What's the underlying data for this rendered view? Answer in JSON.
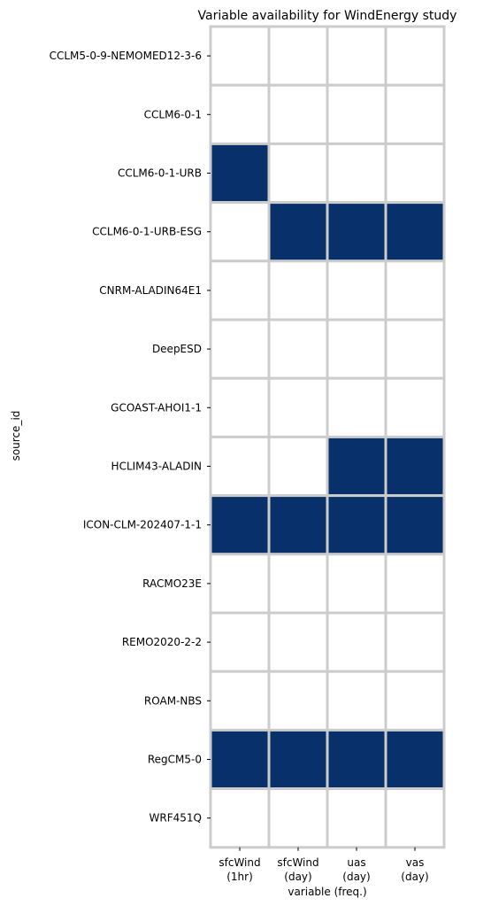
{
  "chart_data": {
    "type": "heatmap",
    "title": "Variable availability for WindEnergy study",
    "xlabel": "variable (freq.)",
    "ylabel": "source_id",
    "columns": [
      {
        "line1": "sfcWind",
        "line2": "(1hr)"
      },
      {
        "line1": "sfcWind",
        "line2": "(day)"
      },
      {
        "line1": "uas",
        "line2": "(day)"
      },
      {
        "line1": "vas",
        "line2": "(day)"
      }
    ],
    "rows": [
      "CCLM5-0-9-NEMOMED12-3-6",
      "CCLM6-0-1",
      "CCLM6-0-1-URB",
      "CCLM6-0-1-URB-ESG",
      "CNRM-ALADIN64E1",
      "DeepESD",
      "GCOAST-AHOI1-1",
      "HCLIM43-ALADIN",
      "ICON-CLM-202407-1-1",
      "RACMO23E",
      "REMO2020-2-2",
      "ROAM-NBS",
      "RegCM5-0",
      "WRF451Q"
    ],
    "values": [
      [
        0,
        0,
        0,
        0
      ],
      [
        0,
        0,
        0,
        0
      ],
      [
        1,
        0,
        0,
        0
      ],
      [
        0,
        1,
        1,
        1
      ],
      [
        0,
        0,
        0,
        0
      ],
      [
        0,
        0,
        0,
        0
      ],
      [
        0,
        0,
        0,
        0
      ],
      [
        0,
        0,
        1,
        1
      ],
      [
        1,
        1,
        1,
        1
      ],
      [
        0,
        0,
        0,
        0
      ],
      [
        0,
        0,
        0,
        0
      ],
      [
        0,
        0,
        0,
        0
      ],
      [
        1,
        1,
        1,
        1
      ],
      [
        0,
        0,
        0,
        0
      ]
    ],
    "colors": {
      "available": "#08306b",
      "missing": "#ffffff",
      "gridline": "#cccccc"
    }
  }
}
